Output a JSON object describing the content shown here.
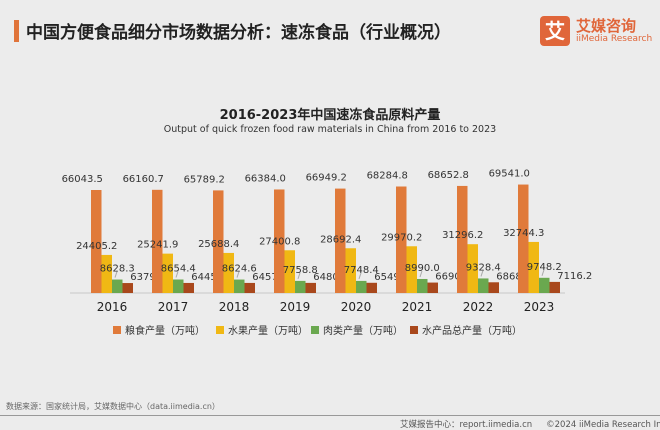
{
  "header": {
    "title": "中国方便食品细分市场数据分析：速冻食品（行业概况）",
    "logo_mark": "艾",
    "logo_cn": "艾媒咨询",
    "logo_en": "iiMedia Research"
  },
  "chart_data": {
    "type": "bar",
    "title": "2016-2023年中国速冻食品原料产量",
    "subtitle": "Output of quick frozen food raw materials in China from 2016 to 2023",
    "categories": [
      "2016",
      "2017",
      "2018",
      "2019",
      "2020",
      "2021",
      "2022",
      "2023"
    ],
    "series": [
      {
        "name": "粮食产量（万吨）",
        "color": "#e07a3a",
        "values": [
          66043.5,
          66160.7,
          65789.2,
          66384.0,
          66949.2,
          68284.8,
          68652.8,
          69541.0
        ]
      },
      {
        "name": "水果产量（万吨）",
        "color": "#f0b814",
        "values": [
          24405.2,
          25241.9,
          25688.4,
          27400.8,
          28692.4,
          29970.2,
          31296.2,
          32744.3
        ]
      },
      {
        "name": "肉类产量（万吨）",
        "color": "#6aa84f",
        "values": [
          8628.3,
          8654.4,
          8624.6,
          7758.8,
          7748.4,
          8990.0,
          9328.4,
          9748.2
        ]
      },
      {
        "name": "水产品总产量（万吨）",
        "color": "#a9481c",
        "values": [
          6379.5,
          6445.3,
          6457.7,
          6480.4,
          6549.0,
          6690.3,
          6868.8,
          7116.2
        ]
      }
    ],
    "legend": "bottom",
    "grid": false,
    "data_labels": true
  },
  "footer": {
    "source": "数据来源：国家统计局，艾媒数据中心（data.iimedia.cn）",
    "report": "艾媒报告中心：report.iimedia.cn",
    "copyright": "©2024  iiMedia Research Inc"
  }
}
